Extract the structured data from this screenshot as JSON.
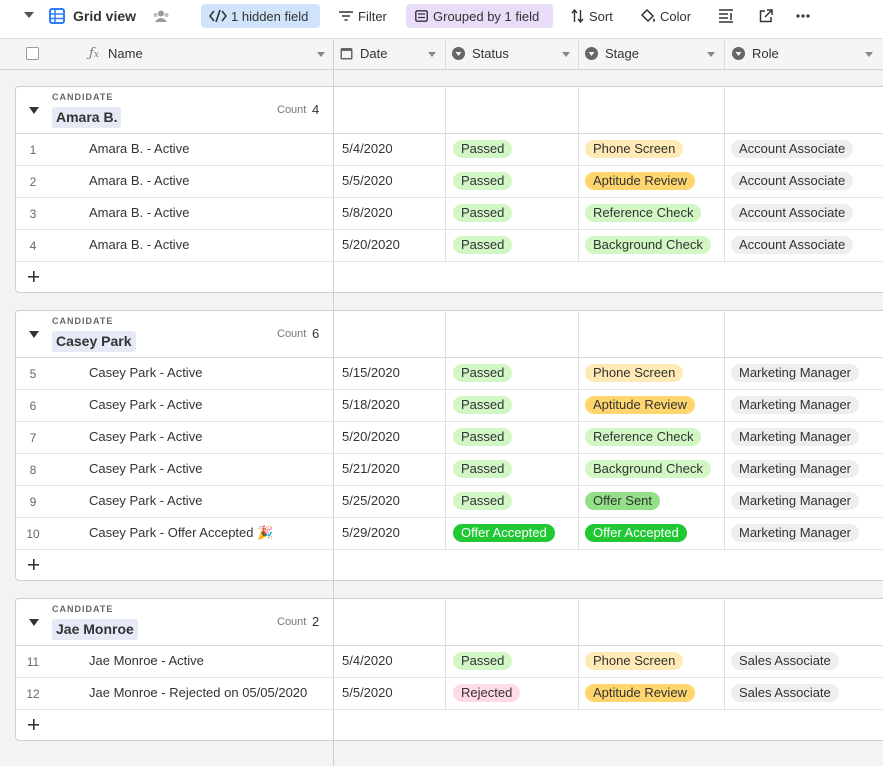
{
  "toolbar": {
    "view_name": "Grid view",
    "hidden_fields": "1 hidden field",
    "filter": "Filter",
    "grouped": "Grouped by 1 field",
    "sort": "Sort",
    "color": "Color"
  },
  "columns": [
    "Name",
    "Date",
    "Status",
    "Stage",
    "Role"
  ],
  "groups": [
    {
      "field_label": "CANDIDATE",
      "name": "Amara B.",
      "count_label": "Count",
      "count": 4,
      "records": [
        {
          "number": 1,
          "name": "Amara B. - Active",
          "date": "5/4/2020",
          "status": {
            "label": "Passed",
            "color": "#d1f7c4"
          },
          "stage": {
            "label": "Phone Screen",
            "color": "#ffeab6"
          },
          "role": {
            "label": "Account Associate",
            "color": "#eeeeee"
          }
        },
        {
          "number": 2,
          "name": "Amara B. - Active",
          "date": "5/5/2020",
          "status": {
            "label": "Passed",
            "color": "#d1f7c4"
          },
          "stage": {
            "label": "Aptitude Review",
            "color": "#ffd66e"
          },
          "role": {
            "label": "Account Associate",
            "color": "#eeeeee"
          }
        },
        {
          "number": 3,
          "name": "Amara B. - Active",
          "date": "5/8/2020",
          "status": {
            "label": "Passed",
            "color": "#d1f7c4"
          },
          "stage": {
            "label": "Reference Check",
            "color": "#d1f7c4"
          },
          "role": {
            "label": "Account Associate",
            "color": "#eeeeee"
          }
        },
        {
          "number": 4,
          "name": "Amara B. - Active",
          "date": "5/20/2020",
          "status": {
            "label": "Passed",
            "color": "#d1f7c4"
          },
          "stage": {
            "label": "Background Check",
            "color": "#d1f7c4"
          },
          "role": {
            "label": "Account Associate",
            "color": "#eeeeee"
          }
        }
      ]
    },
    {
      "field_label": "CANDIDATE",
      "name": "Casey Park",
      "count_label": "Count",
      "count": 6,
      "records": [
        {
          "number": 5,
          "name": "Casey Park - Active",
          "date": "5/15/2020",
          "status": {
            "label": "Passed",
            "color": "#d1f7c4"
          },
          "stage": {
            "label": "Phone Screen",
            "color": "#ffeab6"
          },
          "role": {
            "label": "Marketing Manager",
            "color": "#eeeeee"
          }
        },
        {
          "number": 6,
          "name": "Casey Park - Active",
          "date": "5/18/2020",
          "status": {
            "label": "Passed",
            "color": "#d1f7c4"
          },
          "stage": {
            "label": "Aptitude Review",
            "color": "#ffd66e"
          },
          "role": {
            "label": "Marketing Manager",
            "color": "#eeeeee"
          }
        },
        {
          "number": 7,
          "name": "Casey Park - Active",
          "date": "5/20/2020",
          "status": {
            "label": "Passed",
            "color": "#d1f7c4"
          },
          "stage": {
            "label": "Reference Check",
            "color": "#d1f7c4"
          },
          "role": {
            "label": "Marketing Manager",
            "color": "#eeeeee"
          }
        },
        {
          "number": 8,
          "name": "Casey Park - Active",
          "date": "5/21/2020",
          "status": {
            "label": "Passed",
            "color": "#d1f7c4"
          },
          "stage": {
            "label": "Background Check",
            "color": "#d1f7c4"
          },
          "role": {
            "label": "Marketing Manager",
            "color": "#eeeeee"
          }
        },
        {
          "number": 9,
          "name": "Casey Park - Active",
          "date": "5/25/2020",
          "status": {
            "label": "Passed",
            "color": "#d1f7c4"
          },
          "stage": {
            "label": "Offer Sent",
            "color": "#93e088"
          },
          "role": {
            "label": "Marketing Manager",
            "color": "#eeeeee"
          }
        },
        {
          "number": 10,
          "name": "Casey Park - Offer Accepted 🎉",
          "date": "5/29/2020",
          "status": {
            "label": "Offer Accepted",
            "color": "#20c933"
          },
          "stage": {
            "label": "Offer Accepted",
            "color": "#20c933"
          },
          "role": {
            "label": "Marketing Manager",
            "color": "#eeeeee"
          }
        }
      ]
    },
    {
      "field_label": "CANDIDATE",
      "name": "Jae Monroe",
      "count_label": "Count",
      "count": 2,
      "records": [
        {
          "number": 11,
          "name": "Jae Monroe - Active",
          "date": "5/4/2020",
          "status": {
            "label": "Passed",
            "color": "#d1f7c4"
          },
          "stage": {
            "label": "Phone Screen",
            "color": "#ffeab6"
          },
          "role": {
            "label": "Sales Associate",
            "color": "#eeeeee"
          }
        },
        {
          "number": 12,
          "name": "Jae Monroe - Rejected on 05/05/2020",
          "date": "5/5/2020",
          "status": {
            "label": "Rejected",
            "color": "#ffdce5"
          },
          "stage": {
            "label": "Aptitude Review",
            "color": "#ffd66e"
          },
          "role": {
            "label": "Sales Associate",
            "color": "#eeeeee"
          }
        }
      ]
    }
  ]
}
